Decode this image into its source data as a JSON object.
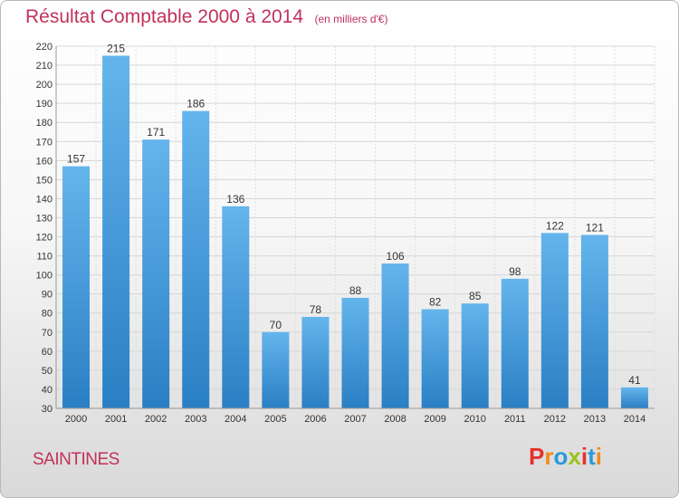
{
  "header": {
    "title": "Résultat Comptable 2000 à 2014",
    "subtitle": "(en milliers d'€)"
  },
  "footer": {
    "city": "SAINTINES",
    "logo_text": "Proxiti"
  },
  "colors": {
    "title": "#c2315c",
    "bar_light": "#64b5ec",
    "bar_dark": "#2a7fc4",
    "logo": [
      "#e8312d",
      "#f08b1d",
      "#2a9ad6",
      "#9bc31c",
      "#e8312d",
      "#2a9ad6",
      "#f08b1d"
    ]
  },
  "chart_data": {
    "type": "bar",
    "categories": [
      "2000",
      "2001",
      "2002",
      "2003",
      "2004",
      "2005",
      "2006",
      "2007",
      "2008",
      "2009",
      "2010",
      "2011",
      "2012",
      "2013",
      "2014"
    ],
    "values": [
      157,
      215,
      171,
      186,
      136,
      70,
      78,
      88,
      106,
      82,
      85,
      98,
      122,
      121,
      41
    ],
    "data_labels": [
      "157",
      "215",
      "171",
      "186",
      "136",
      "70",
      "78",
      "88",
      "106",
      "82",
      "85",
      "98",
      "122",
      "121",
      "41"
    ],
    "ylim": [
      30,
      220
    ],
    "ytick_step": 10,
    "grid": true,
    "legend": "none"
  }
}
